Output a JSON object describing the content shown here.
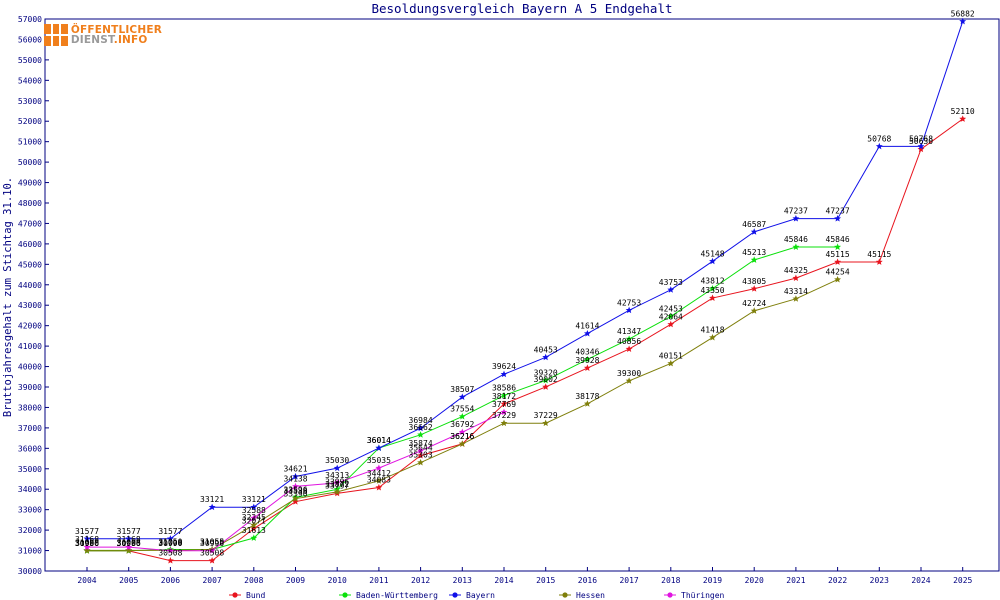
{
  "logo": {
    "line1": "ÖFFENTLICHER",
    "line2": "DIENST",
    "line2_suffix": ".INFO"
  },
  "chart_data": {
    "type": "line",
    "title": "Besoldungsvergleich Bayern A 5 Endgehalt",
    "xlabel": "",
    "ylabel": "Bruttojahresgehalt zum Stichtag 31.10.",
    "x": [
      "2004",
      "2005",
      "2006",
      "2007",
      "2008",
      "2009",
      "2010",
      "2011",
      "2012",
      "2013",
      "2014",
      "2015",
      "2016",
      "2017",
      "2018",
      "2019",
      "2020",
      "2021",
      "2022",
      "2023",
      "2024",
      "2025"
    ],
    "ylim": [
      30000,
      57000
    ],
    "yticks": [
      30000,
      31000,
      32000,
      33000,
      34000,
      35000,
      36000,
      37000,
      38000,
      39000,
      40000,
      41000,
      42000,
      43000,
      44000,
      45000,
      46000,
      47000,
      48000,
      49000,
      50000,
      51000,
      52000,
      53000,
      54000,
      55000,
      56000,
      57000
    ],
    "grid": false,
    "legend_position": "bottom",
    "series": [
      {
        "name": "Bund",
        "color": "#e8141e",
        "values": [
          30986,
          30986,
          30508,
          30508,
          32071,
          33390,
          33797,
          34083,
          35644,
          36216,
          38172,
          39002,
          39928,
          40856,
          42064,
          43350,
          43805,
          44325,
          45115,
          45115,
          50630,
          52110
        ]
      },
      {
        "name": "Baden-Württemberg",
        "color": "#0be00b",
        "values": [
          30990,
          30990,
          31050,
          31050,
          31613,
          33596,
          33996,
          36014,
          36662,
          37554,
          38586,
          39320,
          40346,
          41347,
          42453,
          43812,
          45213,
          45846,
          45846,
          null,
          null,
          null
        ]
      },
      {
        "name": "Bayern",
        "color": "#1010e8",
        "values": [
          31577,
          31577,
          31577,
          33121,
          33121,
          34621,
          35030,
          36014,
          36984,
          38507,
          39624,
          40453,
          41614,
          42753,
          43753,
          45148,
          46587,
          47237,
          47237,
          50768,
          50768,
          56882
        ]
      },
      {
        "name": "Hessen",
        "color": "#7f7f0b",
        "values": [
          31008,
          31008,
          31008,
          31055,
          32245,
          33538,
          33872,
          34412,
          35303,
          36216,
          37229,
          37229,
          38178,
          39300,
          40151,
          41418,
          42724,
          43314,
          44254,
          null,
          null,
          null
        ]
      },
      {
        "name": "Thüringen",
        "color": "#e014e0",
        "values": [
          31168,
          31168,
          30990,
          30990,
          32588,
          34138,
          34313,
          35035,
          35874,
          36792,
          37769,
          null,
          null,
          null,
          null,
          null,
          null,
          null,
          null,
          null,
          null,
          null
        ]
      }
    ]
  }
}
